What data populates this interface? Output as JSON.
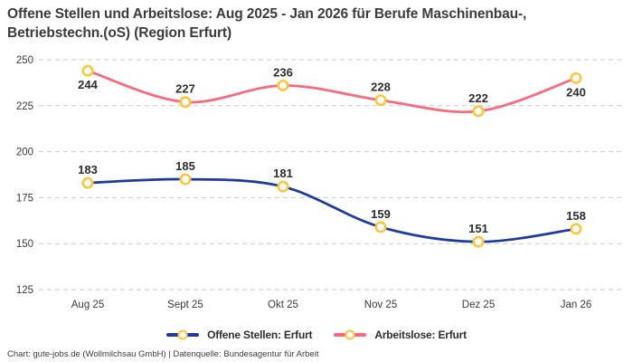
{
  "footer": {
    "text": "Chart: gute-jobs.de (Wollmilchsau GmbH) | Datenquelle: Bundesagentur für Arbeit"
  },
  "chart_data": {
    "type": "line",
    "title_lines": [
      "Offene Stellen und Arbeitslose: Aug 2025 - Jan 2026 für Berufe Maschinenbau-,",
      "Betriebstechn.(oS) (Region Erfurt)"
    ],
    "categories": [
      "Aug 25",
      "Sept 25",
      "Okt 25",
      "Nov 25",
      "Dez 25",
      "Jan 26"
    ],
    "series": [
      {
        "name": "Offene Stellen: Erfurt",
        "color": "#1F3A9E",
        "values": [
          183,
          185,
          181,
          159,
          151,
          158
        ],
        "label_positions": [
          "above",
          "above",
          "above",
          "above",
          "above",
          "above"
        ]
      },
      {
        "name": "Arbeitslose: Erfurt",
        "color": "#F9687F",
        "values": [
          244,
          227,
          236,
          228,
          222,
          240
        ],
        "label_positions": [
          "below",
          "above",
          "above",
          "above",
          "above",
          "below"
        ]
      }
    ],
    "marker": {
      "fill": "#FFFFFF",
      "stroke": "#FFC43D"
    },
    "yticks": [
      125,
      150,
      175,
      200,
      225,
      250
    ],
    "ylim": [
      125,
      250
    ],
    "xlabel": "",
    "ylabel": "",
    "grid": "horizontal-dashed",
    "legend_position": "bottom-center"
  }
}
